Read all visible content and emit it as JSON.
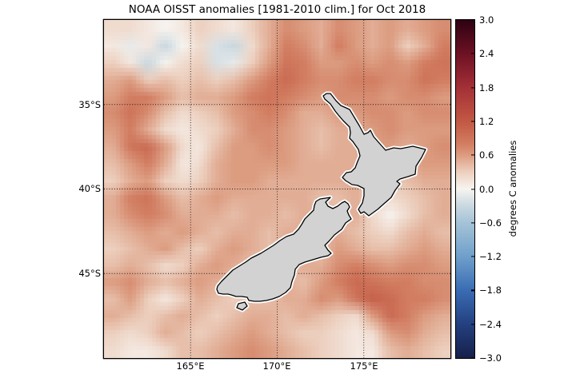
{
  "chart_data": {
    "type": "heatmap",
    "title": "NOAA OISST anomalies [1981-2010 clim.] for Oct 2018",
    "region": "New Zealand",
    "x_axis": {
      "range_lon_e": [
        160,
        180
      ],
      "ticks": [
        {
          "lon": 165,
          "label": "165°E"
        },
        {
          "lon": 170,
          "label": "170°E"
        },
        {
          "lon": 175,
          "label": "175°E"
        }
      ]
    },
    "y_axis": {
      "range_lat_s": [
        30,
        50
      ],
      "ticks": [
        {
          "lat": 35,
          "label": "35°S"
        },
        {
          "lat": 40,
          "label": "40°S"
        },
        {
          "lat": 45,
          "label": "45°S"
        }
      ]
    },
    "colorbar": {
      "label": "degrees C anomalies",
      "min": -3.0,
      "max": 3.0,
      "ticks": [
        {
          "v": 3.0,
          "label": "3.0"
        },
        {
          "v": 2.4,
          "label": "2.4"
        },
        {
          "v": 1.8,
          "label": "1.8"
        },
        {
          "v": 1.2,
          "label": "1.2"
        },
        {
          "v": 0.6,
          "label": "0.6"
        },
        {
          "v": 0.0,
          "label": "0.0"
        },
        {
          "v": -0.6,
          "label": "−0.6"
        },
        {
          "v": -1.2,
          "label": "−1.2"
        },
        {
          "v": -1.8,
          "label": "−1.8"
        },
        {
          "v": -2.4,
          "label": "−2.4"
        },
        {
          "v": -3.0,
          "label": "−3.0"
        }
      ],
      "stops": [
        {
          "v": 3.0,
          "c": "#2d0212"
        },
        {
          "v": 2.4,
          "c": "#6d1124"
        },
        {
          "v": 1.8,
          "c": "#a33036"
        },
        {
          "v": 1.2,
          "c": "#c25844"
        },
        {
          "v": 0.8,
          "c": "#d27d61"
        },
        {
          "v": 0.6,
          "c": "#dc9c80"
        },
        {
          "v": 0.3,
          "c": "#edd0bf"
        },
        {
          "v": 0.0,
          "c": "#f7f4f0"
        },
        {
          "v": -0.3,
          "c": "#c9d8e0"
        },
        {
          "v": -0.6,
          "c": "#a5c3d7"
        },
        {
          "v": -1.2,
          "c": "#6f9fca"
        },
        {
          "v": -1.8,
          "c": "#3a6cb4"
        },
        {
          "v": -2.4,
          "c": "#24407f"
        },
        {
          "v": -3.0,
          "c": "#16204a"
        }
      ]
    },
    "grid": {
      "units": "degC_anomaly",
      "lon_e_start": 160,
      "lon_e_end": 180,
      "lat_s_start": 30,
      "lat_s_end": 50,
      "cols": 20,
      "rows": 20,
      "values": [
        [
          0.2,
          0.2,
          0.1,
          0.0,
          0.1,
          0.3,
          0.2,
          0.1,
          0.3,
          0.5,
          0.7,
          0.6,
          0.5,
          0.7,
          0.6,
          0.5,
          0.6,
          0.5,
          0.6,
          0.7
        ],
        [
          0.1,
          -0.1,
          0.1,
          -0.3,
          0.0,
          0.2,
          -0.2,
          -0.3,
          0.2,
          0.5,
          0.8,
          0.7,
          0.5,
          0.8,
          0.6,
          0.5,
          0.6,
          0.3,
          0.5,
          0.8
        ],
        [
          0.3,
          0.1,
          -0.3,
          0.0,
          0.2,
          0.3,
          -0.2,
          -0.1,
          0.3,
          0.6,
          0.9,
          0.8,
          0.6,
          0.6,
          0.7,
          0.6,
          0.7,
          0.6,
          0.8,
          0.9
        ],
        [
          0.5,
          0.6,
          0.3,
          0.4,
          0.3,
          0.4,
          0.3,
          0.4,
          0.6,
          0.8,
          1.0,
          0.8,
          0.7,
          0.7,
          0.8,
          0.8,
          0.7,
          0.7,
          0.9,
          0.8
        ],
        [
          0.6,
          0.8,
          0.8,
          0.6,
          0.4,
          0.5,
          0.5,
          0.6,
          0.8,
          0.9,
          0.8,
          0.7,
          0.6,
          0.7,
          0.7,
          0.7,
          0.6,
          0.7,
          0.7,
          0.6
        ],
        [
          0.7,
          0.9,
          0.7,
          0.4,
          0.2,
          0.3,
          0.4,
          0.6,
          0.7,
          0.8,
          0.7,
          0.5,
          0.5,
          0.6,
          0.6,
          0.7,
          0.7,
          0.6,
          0.7,
          0.7
        ],
        [
          0.6,
          0.8,
          0.5,
          0.2,
          0.1,
          0.2,
          0.3,
          0.5,
          0.7,
          0.7,
          0.6,
          0.5,
          0.4,
          0.5,
          0.5,
          0.6,
          0.7,
          0.6,
          0.6,
          0.6
        ],
        [
          0.5,
          0.9,
          1.0,
          0.6,
          0.2,
          0.1,
          0.4,
          0.6,
          0.6,
          0.7,
          0.6,
          0.5,
          0.4,
          0.5,
          0.5,
          0.6,
          0.6,
          0.5,
          0.6,
          0.7
        ],
        [
          0.4,
          0.6,
          0.8,
          0.5,
          0.1,
          0.2,
          0.5,
          0.6,
          0.6,
          0.6,
          0.6,
          0.5,
          0.5,
          0.5,
          0.5,
          0.5,
          0.4,
          0.5,
          0.6,
          0.6
        ],
        [
          0.3,
          0.5,
          0.6,
          0.3,
          0.2,
          0.3,
          0.5,
          0.6,
          0.6,
          0.5,
          0.5,
          0.5,
          0.5,
          0.5,
          0.5,
          0.4,
          0.3,
          0.4,
          0.5,
          0.5
        ],
        [
          0.5,
          0.8,
          0.9,
          0.6,
          0.4,
          0.5,
          0.6,
          0.5,
          0.5,
          0.5,
          0.5,
          0.5,
          0.4,
          0.4,
          0.5,
          0.3,
          0.2,
          0.3,
          0.4,
          0.5
        ],
        [
          0.5,
          0.7,
          0.8,
          0.7,
          0.5,
          0.5,
          0.5,
          0.4,
          0.5,
          0.5,
          0.4,
          0.5,
          0.5,
          0.4,
          0.5,
          0.2,
          0.0,
          0.2,
          0.4,
          0.5
        ],
        [
          0.4,
          0.5,
          0.6,
          0.5,
          0.6,
          0.5,
          0.4,
          0.5,
          0.5,
          0.4,
          0.5,
          0.5,
          0.5,
          0.5,
          0.4,
          0.3,
          0.2,
          0.4,
          0.5,
          0.4
        ],
        [
          0.3,
          0.4,
          0.5,
          0.6,
          0.4,
          0.3,
          0.5,
          0.6,
          0.5,
          0.4,
          0.5,
          0.5,
          0.4,
          0.6,
          0.5,
          0.4,
          0.4,
          0.5,
          0.6,
          0.5
        ],
        [
          0.4,
          0.5,
          0.4,
          0.2,
          0.3,
          0.5,
          0.6,
          0.5,
          0.4,
          0.5,
          0.4,
          0.5,
          0.5,
          0.7,
          0.8,
          0.7,
          0.6,
          0.7,
          0.7,
          0.6
        ],
        [
          0.6,
          0.7,
          0.5,
          0.4,
          0.5,
          0.6,
          0.5,
          0.4,
          0.5,
          0.5,
          0.5,
          0.4,
          0.6,
          0.8,
          1.0,
          0.9,
          0.8,
          0.8,
          0.7,
          0.7
        ],
        [
          0.4,
          0.6,
          0.3,
          0.1,
          0.3,
          0.5,
          0.4,
          0.3,
          0.4,
          0.4,
          0.5,
          0.5,
          0.7,
          0.6,
          0.9,
          1.1,
          1.0,
          0.8,
          0.8,
          0.7
        ],
        [
          0.5,
          0.4,
          0.3,
          0.4,
          0.5,
          0.4,
          0.3,
          0.4,
          0.5,
          0.5,
          0.4,
          0.5,
          0.4,
          0.3,
          0.2,
          0.6,
          1.0,
          0.8,
          0.6,
          0.5
        ],
        [
          0.3,
          0.2,
          0.3,
          0.5,
          0.4,
          0.3,
          0.4,
          0.5,
          0.6,
          0.5,
          0.4,
          0.3,
          0.3,
          0.2,
          0.1,
          0.2,
          0.6,
          0.7,
          0.5,
          0.4
        ],
        [
          0.2,
          0.1,
          0.1,
          0.2,
          0.4,
          0.4,
          0.5,
          0.6,
          0.7,
          0.6,
          0.5,
          0.4,
          0.3,
          0.2,
          0.1,
          0.1,
          0.4,
          0.5,
          0.4,
          0.3
        ]
      ]
    },
    "land_fill": "#d2d2d2",
    "coast_stroke": "#000000"
  }
}
